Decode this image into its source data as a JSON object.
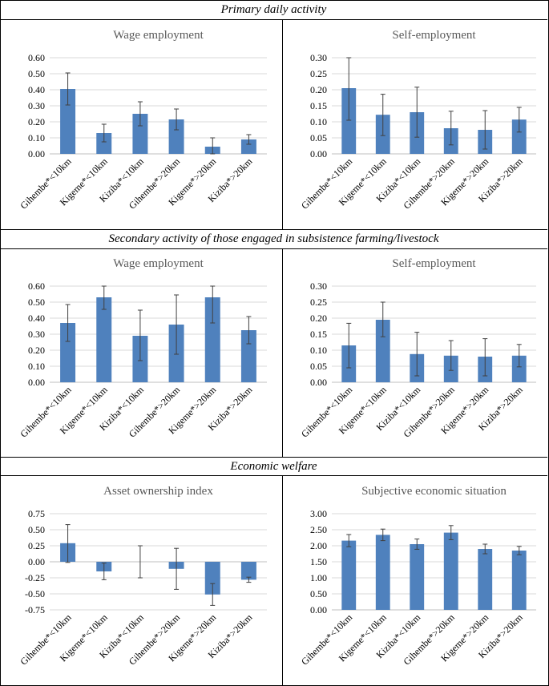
{
  "sections": [
    {
      "title": "Primary daily activity"
    },
    {
      "title": "Secondary activity of those engaged in subsistence farming/livestock"
    },
    {
      "title": "Economic welfare"
    }
  ],
  "colors": {
    "bar": "#4f81bd",
    "grid": "#d9d9d9",
    "error_bar": "#404040",
    "axis_text": "#595959"
  },
  "chart_data": [
    {
      "type": "bar",
      "title": "Wage employment",
      "categories": [
        "Gihembe*<10km",
        "Kigeme*<10km",
        "Kiziba*<10km",
        "Gihembe*>20km",
        "Kigeme*>20km",
        "Kiziba*>20km"
      ],
      "values": [
        0.405,
        0.13,
        0.25,
        0.215,
        0.045,
        0.09
      ],
      "error_low": [
        0.305,
        0.075,
        0.175,
        0.15,
        0.0,
        0.06
      ],
      "error_high": [
        0.505,
        0.185,
        0.325,
        0.28,
        0.1,
        0.12
      ],
      "ylim": [
        0,
        0.6
      ],
      "yticks": [
        "0.00",
        "0.10",
        "0.20",
        "0.30",
        "0.40",
        "0.50",
        "0.60"
      ],
      "ytick_values": [
        0,
        0.1,
        0.2,
        0.3,
        0.4,
        0.5,
        0.6
      ],
      "xlabel": "",
      "ylabel": ""
    },
    {
      "type": "bar",
      "title": "Self-employment",
      "categories": [
        "Gihembe*<10km",
        "Kigeme*<10km",
        "Kiziba*<10km",
        "Gihembe*>20km",
        "Kigeme*>20km",
        "Kiziba*>20km"
      ],
      "values": [
        0.205,
        0.122,
        0.13,
        0.08,
        0.075,
        0.107
      ],
      "error_low": [
        0.105,
        0.057,
        0.052,
        0.028,
        0.015,
        0.068
      ],
      "error_high": [
        0.3,
        0.186,
        0.208,
        0.133,
        0.135,
        0.145
      ],
      "ylim": [
        0,
        0.3
      ],
      "yticks": [
        "0.00",
        "0.05",
        "0.10",
        "0.15",
        "0.20",
        "0.25",
        "0.30"
      ],
      "ytick_values": [
        0,
        0.05,
        0.1,
        0.15,
        0.2,
        0.25,
        0.3
      ],
      "xlabel": "",
      "ylabel": ""
    },
    {
      "type": "bar",
      "title": "Wage employment",
      "categories": [
        "Gihembe*<10km",
        "Kigeme*<10km",
        "Kiziba*<10km",
        "Gihembe*>20km",
        "Kigeme*>20km",
        "Kiziba*>20km"
      ],
      "values": [
        0.37,
        0.53,
        0.29,
        0.36,
        0.53,
        0.325
      ],
      "error_low": [
        0.255,
        0.455,
        0.135,
        0.175,
        0.37,
        0.24
      ],
      "error_high": [
        0.485,
        0.6,
        0.45,
        0.545,
        0.6,
        0.41
      ],
      "ylim": [
        0,
        0.6
      ],
      "yticks": [
        "0.00",
        "0.10",
        "0.20",
        "0.30",
        "0.40",
        "0.50",
        "0.60"
      ],
      "ytick_values": [
        0,
        0.1,
        0.2,
        0.3,
        0.4,
        0.5,
        0.6
      ],
      "xlabel": "",
      "ylabel": ""
    },
    {
      "type": "bar",
      "title": "Self-employment",
      "categories": [
        "Gihembe*<10km",
        "Kigeme*<10km",
        "Kiziba*<10km",
        "Gihembe*>20km",
        "Kigeme*>20km",
        "Kiziba*>20km"
      ],
      "values": [
        0.115,
        0.195,
        0.088,
        0.083,
        0.08,
        0.083
      ],
      "error_low": [
        0.045,
        0.142,
        0.02,
        0.037,
        0.02,
        0.048
      ],
      "error_high": [
        0.184,
        0.25,
        0.156,
        0.13,
        0.136,
        0.118
      ],
      "ylim": [
        0,
        0.3
      ],
      "yticks": [
        "0.00",
        "0.05",
        "0.10",
        "0.15",
        "0.20",
        "0.25",
        "0.30"
      ],
      "ytick_values": [
        0,
        0.05,
        0.1,
        0.15,
        0.2,
        0.25,
        0.3
      ],
      "xlabel": "",
      "ylabel": ""
    },
    {
      "type": "bar",
      "title": "Asset ownership index",
      "categories": [
        "Gihembe*<10km",
        "Kigeme*<10km",
        "Kiziba*<10km",
        "Gihembe*>20km",
        "Kigeme*>20km",
        "Kiziba*>20km"
      ],
      "values": [
        0.29,
        -0.15,
        0.0,
        -0.11,
        -0.51,
        -0.28
      ],
      "error_low": [
        -0.01,
        -0.28,
        -0.25,
        -0.43,
        -0.68,
        -0.32
      ],
      "error_high": [
        0.58,
        -0.02,
        0.25,
        0.21,
        -0.34,
        -0.24
      ],
      "ylim": [
        -0.75,
        0.75
      ],
      "yticks": [
        "-0.75",
        "-0.50",
        "-0.25",
        "0.00",
        "0.25",
        "0.50",
        "0.75"
      ],
      "ytick_values": [
        -0.75,
        -0.5,
        -0.25,
        0,
        0.25,
        0.5,
        0.75
      ],
      "xlabel": "",
      "ylabel": ""
    },
    {
      "type": "bar",
      "title": "Subjective economic situation",
      "categories": [
        "Gihembe*<10km",
        "Kigeme*<10km",
        "Kiziba*<10km",
        "Gihembe*>20km",
        "Kigeme*>20km",
        "Kiziba*>20km"
      ],
      "values": [
        2.16,
        2.34,
        2.05,
        2.41,
        1.9,
        1.85
      ],
      "error_low": [
        1.97,
        2.16,
        1.89,
        2.19,
        1.75,
        1.72
      ],
      "error_high": [
        2.35,
        2.52,
        2.21,
        2.63,
        2.05,
        1.98
      ],
      "ylim": [
        0,
        3
      ],
      "yticks": [
        "0.00",
        "0.50",
        "1.00",
        "1.50",
        "2.00",
        "2.50",
        "3.00"
      ],
      "ytick_values": [
        0,
        0.5,
        1,
        1.5,
        2,
        2.5,
        3
      ],
      "xlabel": "",
      "ylabel": ""
    }
  ]
}
